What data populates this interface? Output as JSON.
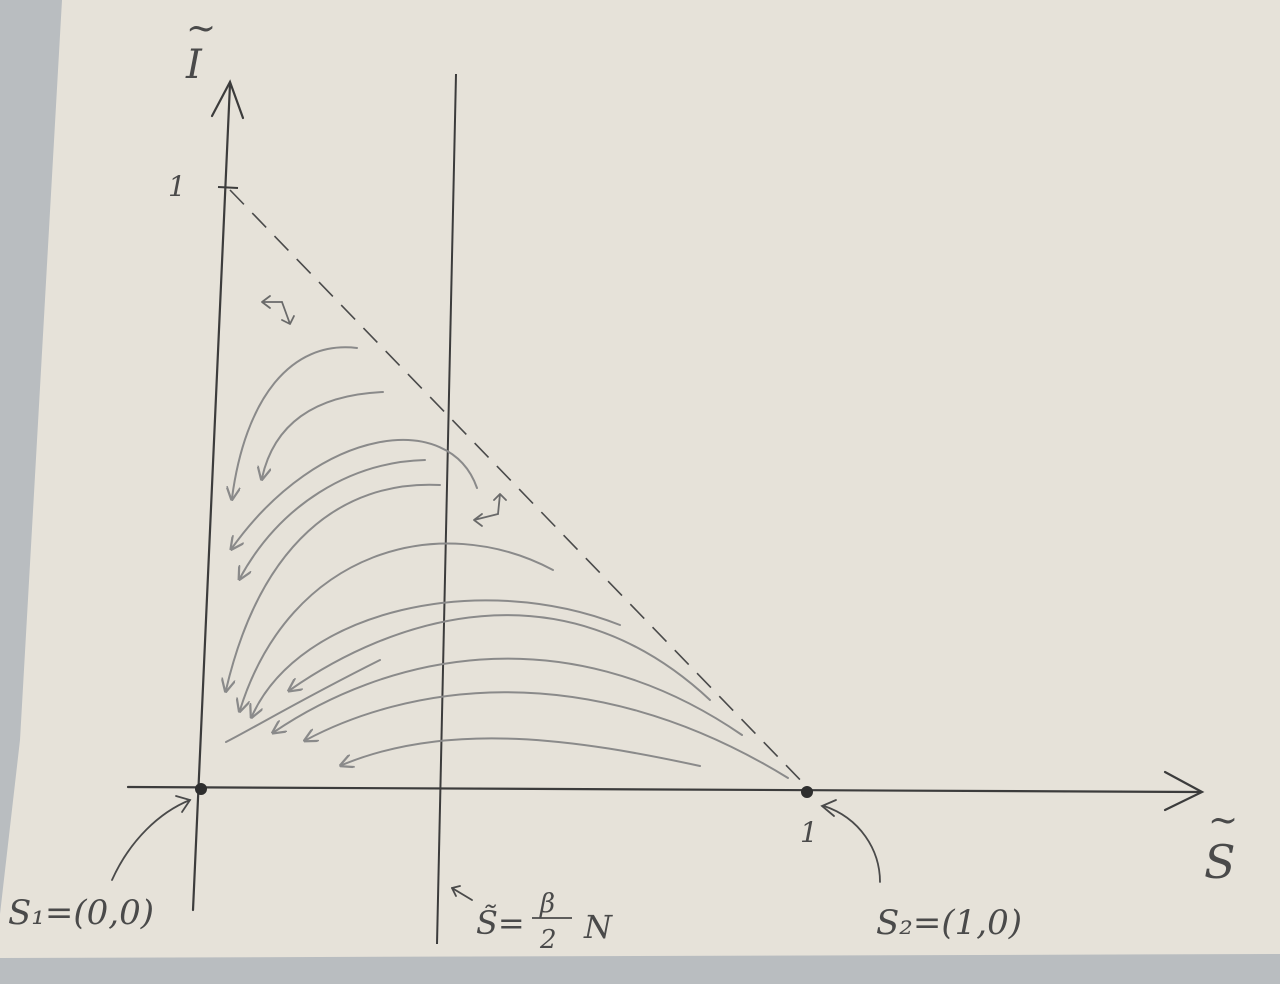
{
  "axes": {
    "x_label": "S",
    "y_label": "I",
    "x_tilde": "~",
    "y_tilde": "~",
    "x_tick": "1",
    "y_tick": "1"
  },
  "points": {
    "s1": "S₁=(0,0)",
    "s2": "S₂=(1,0)"
  },
  "vertical_line": {
    "lhs": "S̃=",
    "numerator": "β",
    "denominator": "2",
    "suffix": "N"
  },
  "colors": {
    "paper": "#e6e2d9",
    "ink": "#3c3c3c",
    "pencil_light": "#8a8a8a",
    "background": "#b9bdc0"
  }
}
